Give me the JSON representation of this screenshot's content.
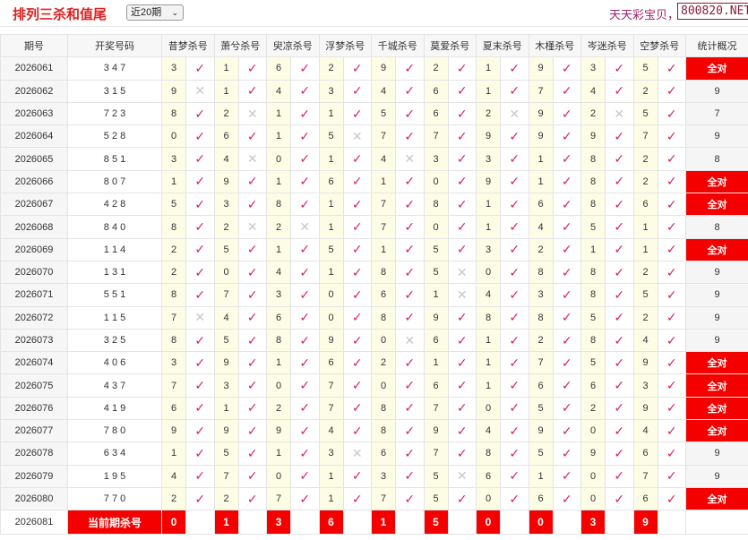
{
  "header": {
    "title": "排列三杀和值尾",
    "period_select": "近20期",
    "promo": "天天彩宝贝，",
    "brand": "800820.NET"
  },
  "columns": {
    "issue": "期号",
    "draw": "开奖号码",
    "kills": [
      "昔梦杀号",
      "萧兮杀号",
      "臾凉杀号",
      "浮梦杀号",
      "千城杀号",
      "莫爱杀号",
      "夏末杀号",
      "木槿杀号",
      "岑迷杀号",
      "空梦杀号"
    ],
    "stat": "统计概况"
  },
  "rows": [
    {
      "issue": "2026061",
      "draw": "3 4 7",
      "kills": [
        3,
        1,
        6,
        2,
        9,
        2,
        1,
        9,
        3,
        5
      ],
      "ok": [
        1,
        1,
        1,
        1,
        1,
        1,
        1,
        1,
        1,
        1
      ],
      "stat": "全对"
    },
    {
      "issue": "2026062",
      "draw": "3 1 5",
      "kills": [
        9,
        1,
        4,
        3,
        4,
        6,
        1,
        7,
        4,
        2
      ],
      "ok": [
        0,
        1,
        1,
        1,
        1,
        1,
        1,
        1,
        1,
        1
      ],
      "stat": "9"
    },
    {
      "issue": "2026063",
      "draw": "7 2 3",
      "kills": [
        8,
        2,
        1,
        1,
        5,
        6,
        2,
        9,
        2,
        5
      ],
      "ok": [
        1,
        0,
        1,
        1,
        1,
        1,
        0,
        1,
        0,
        1
      ],
      "stat": "7"
    },
    {
      "issue": "2026064",
      "draw": "5 2 8",
      "kills": [
        0,
        6,
        1,
        5,
        7,
        7,
        9,
        9,
        9,
        7
      ],
      "ok": [
        1,
        1,
        1,
        0,
        1,
        1,
        1,
        1,
        1,
        1
      ],
      "stat": "9"
    },
    {
      "issue": "2026065",
      "draw": "8 5 1",
      "kills": [
        3,
        4,
        0,
        1,
        4,
        3,
        3,
        1,
        8,
        2
      ],
      "ok": [
        1,
        0,
        1,
        1,
        0,
        1,
        1,
        1,
        1,
        1
      ],
      "stat": "8"
    },
    {
      "issue": "2026066",
      "draw": "8 0 7",
      "kills": [
        1,
        9,
        1,
        6,
        1,
        0,
        9,
        1,
        8,
        2
      ],
      "ok": [
        1,
        1,
        1,
        1,
        1,
        1,
        1,
        1,
        1,
        1
      ],
      "stat": "全对"
    },
    {
      "issue": "2026067",
      "draw": "4 2 8",
      "kills": [
        5,
        3,
        8,
        1,
        7,
        8,
        1,
        6,
        8,
        6
      ],
      "ok": [
        1,
        1,
        1,
        1,
        1,
        1,
        1,
        1,
        1,
        1
      ],
      "stat": "全对"
    },
    {
      "issue": "2026068",
      "draw": "8 4 0",
      "kills": [
        8,
        2,
        2,
        1,
        7,
        0,
        1,
        4,
        5,
        1
      ],
      "ok": [
        1,
        0,
        0,
        1,
        1,
        1,
        1,
        1,
        1,
        1
      ],
      "stat": "8"
    },
    {
      "issue": "2026069",
      "draw": "1 1 4",
      "kills": [
        2,
        5,
        1,
        5,
        1,
        5,
        3,
        2,
        1,
        1
      ],
      "ok": [
        1,
        1,
        1,
        1,
        1,
        1,
        1,
        1,
        1,
        1
      ],
      "stat": "全对"
    },
    {
      "issue": "2026070",
      "draw": "1 3 1",
      "kills": [
        2,
        0,
        4,
        1,
        8,
        5,
        0,
        8,
        8,
        2
      ],
      "ok": [
        1,
        1,
        1,
        1,
        1,
        0,
        1,
        1,
        1,
        1
      ],
      "stat": "9"
    },
    {
      "issue": "2026071",
      "draw": "5 5 1",
      "kills": [
        8,
        7,
        3,
        0,
        6,
        1,
        4,
        3,
        8,
        5
      ],
      "ok": [
        1,
        1,
        1,
        1,
        1,
        0,
        1,
        1,
        1,
        1
      ],
      "stat": "9"
    },
    {
      "issue": "2026072",
      "draw": "1 1 5",
      "kills": [
        7,
        4,
        6,
        0,
        8,
        9,
        8,
        8,
        5,
        2
      ],
      "ok": [
        0,
        1,
        1,
        1,
        1,
        1,
        1,
        1,
        1,
        1
      ],
      "stat": "9"
    },
    {
      "issue": "2026073",
      "draw": "3 2 5",
      "kills": [
        8,
        5,
        8,
        9,
        0,
        6,
        1,
        2,
        8,
        4
      ],
      "ok": [
        1,
        1,
        1,
        1,
        0,
        1,
        1,
        1,
        1,
        1
      ],
      "stat": "9"
    },
    {
      "issue": "2026074",
      "draw": "4 0 6",
      "kills": [
        3,
        9,
        1,
        6,
        2,
        1,
        1,
        7,
        5,
        9
      ],
      "ok": [
        1,
        1,
        1,
        1,
        1,
        1,
        1,
        1,
        1,
        1
      ],
      "stat": "全对"
    },
    {
      "issue": "2026075",
      "draw": "4 3 7",
      "kills": [
        7,
        3,
        0,
        7,
        0,
        6,
        1,
        6,
        6,
        3
      ],
      "ok": [
        1,
        1,
        1,
        1,
        1,
        1,
        1,
        1,
        1,
        1
      ],
      "stat": "全对"
    },
    {
      "issue": "2026076",
      "draw": "4 1 9",
      "kills": [
        6,
        1,
        2,
        7,
        8,
        7,
        0,
        5,
        2,
        9
      ],
      "ok": [
        1,
        1,
        1,
        1,
        1,
        1,
        1,
        1,
        1,
        1
      ],
      "stat": "全对"
    },
    {
      "issue": "2026077",
      "draw": "7 8 0",
      "kills": [
        9,
        9,
        9,
        4,
        8,
        9,
        4,
        9,
        0,
        4
      ],
      "ok": [
        1,
        1,
        1,
        1,
        1,
        1,
        1,
        1,
        1,
        1
      ],
      "stat": "全对"
    },
    {
      "issue": "2026078",
      "draw": "6 3 4",
      "kills": [
        1,
        5,
        1,
        3,
        6,
        7,
        8,
        5,
        9,
        6
      ],
      "ok": [
        1,
        1,
        1,
        0,
        1,
        1,
        1,
        1,
        1,
        1
      ],
      "stat": "9"
    },
    {
      "issue": "2026079",
      "draw": "1 9 5",
      "kills": [
        4,
        7,
        0,
        1,
        3,
        5,
        6,
        1,
        0,
        7
      ],
      "ok": [
        1,
        1,
        1,
        1,
        1,
        0,
        1,
        1,
        1,
        1
      ],
      "stat": "9"
    },
    {
      "issue": "2026080",
      "draw": "7 7 0",
      "kills": [
        2,
        2,
        7,
        1,
        7,
        5,
        0,
        6,
        0,
        6
      ],
      "ok": [
        1,
        1,
        1,
        1,
        1,
        1,
        1,
        1,
        1,
        1
      ],
      "stat": "全对"
    }
  ],
  "current": {
    "issue": "2026081",
    "label": "当前期杀号",
    "kills": [
      0,
      1,
      3,
      6,
      1,
      5,
      0,
      0,
      3,
      9
    ]
  },
  "marks": {
    "hit": "✓",
    "miss": "✕"
  },
  "colors": {
    "accent": "#f40000",
    "check": "#d6254f"
  }
}
